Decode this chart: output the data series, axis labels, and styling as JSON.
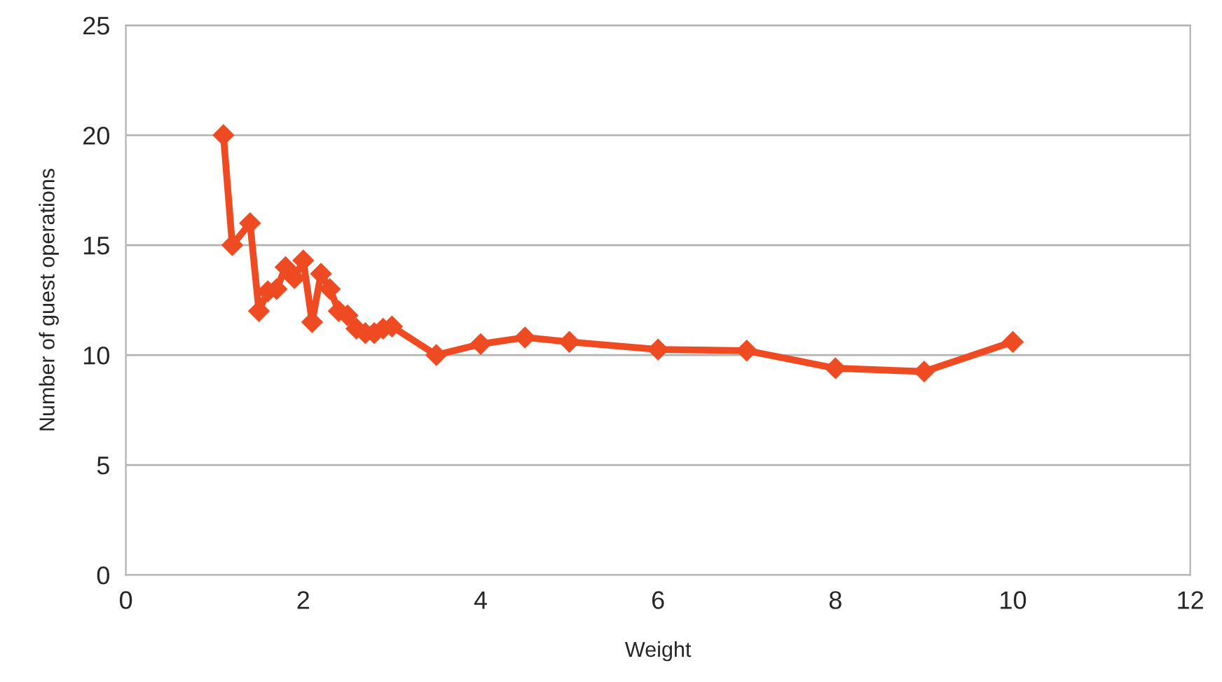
{
  "chart_data": {
    "type": "line",
    "xlabel": "Weight",
    "ylabel": "Number of guest operations",
    "x": [
      1.1,
      1.2,
      1.4,
      1.5,
      1.6,
      1.7,
      1.8,
      1.9,
      2.0,
      2.1,
      2.2,
      2.3,
      2.4,
      2.5,
      2.6,
      2.7,
      2.8,
      2.9,
      3.0,
      3.5,
      4,
      4.5,
      5,
      6,
      7,
      8,
      9,
      10
    ],
    "series": [
      {
        "color": "#ee4b22",
        "values": [
          20,
          15,
          16,
          12,
          12.9,
          13,
          14,
          13.5,
          14.3,
          11.5,
          13.7,
          13,
          12,
          11.8,
          11.2,
          11,
          11,
          11.2,
          11.3,
          10,
          10.5,
          10.8,
          10.6,
          10.25,
          10.2,
          9.4,
          9.25,
          10.6
        ]
      }
    ],
    "xlim": [
      0,
      12
    ],
    "xticks": [
      0,
      2,
      4,
      6,
      8,
      10,
      12
    ],
    "ylim": [
      0,
      25
    ],
    "yticks": [
      0,
      5,
      10,
      15,
      20,
      25
    ],
    "grid": "y",
    "marker": "diamond",
    "line_style": "solid",
    "legend": false
  }
}
